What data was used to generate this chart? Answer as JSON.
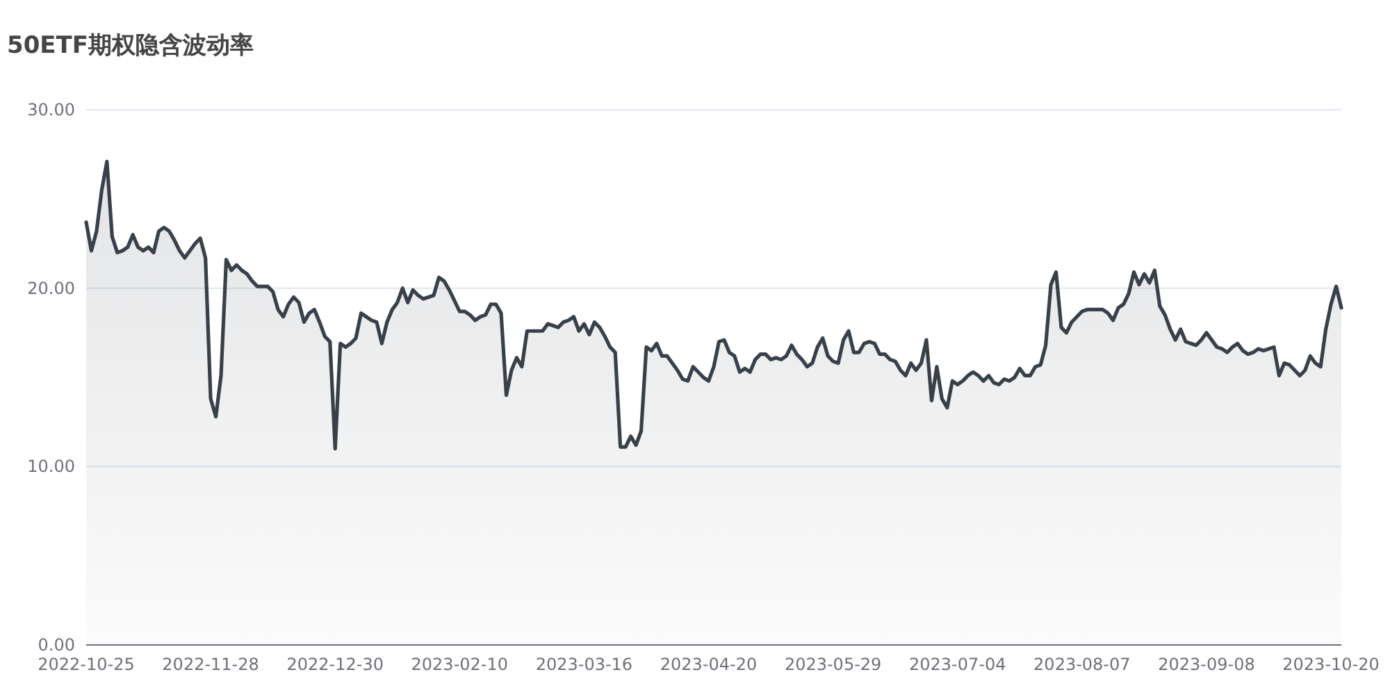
{
  "chart_data": {
    "type": "area",
    "title": "50ETF期权隐含波动率",
    "categories": [
      "2022-10-25",
      null,
      null,
      null,
      null,
      null,
      null,
      null,
      null,
      null,
      null,
      null,
      null,
      null,
      null,
      null,
      null,
      null,
      null,
      null,
      null,
      null,
      null,
      null,
      "2022-11-28",
      null,
      null,
      null,
      null,
      null,
      null,
      null,
      null,
      null,
      null,
      null,
      null,
      null,
      null,
      null,
      null,
      null,
      null,
      null,
      null,
      null,
      null,
      null,
      "2022-12-30",
      null,
      null,
      null,
      null,
      null,
      null,
      null,
      null,
      null,
      null,
      null,
      null,
      null,
      null,
      null,
      null,
      null,
      null,
      null,
      null,
      null,
      null,
      null,
      "2023-02-10",
      null,
      null,
      null,
      null,
      null,
      null,
      null,
      null,
      null,
      null,
      null,
      null,
      null,
      null,
      null,
      null,
      null,
      null,
      null,
      null,
      null,
      null,
      null,
      "2023-03-16",
      null,
      null,
      null,
      null,
      null,
      null,
      null,
      null,
      null,
      null,
      null,
      null,
      null,
      null,
      null,
      null,
      null,
      null,
      null,
      null,
      null,
      null,
      null,
      "2023-04-20",
      null,
      null,
      null,
      null,
      null,
      null,
      null,
      null,
      null,
      null,
      null,
      null,
      null,
      null,
      null,
      null,
      null,
      null,
      null,
      null,
      null,
      null,
      null,
      "2023-05-29",
      null,
      null,
      null,
      null,
      null,
      null,
      null,
      null,
      null,
      null,
      null,
      null,
      null,
      null,
      null,
      null,
      null,
      null,
      null,
      null,
      null,
      null,
      null,
      "2023-07-04",
      null,
      null,
      null,
      null,
      null,
      null,
      null,
      null,
      null,
      null,
      null,
      null,
      null,
      null,
      null,
      null,
      null,
      null,
      null,
      null,
      null,
      null,
      null,
      "2023-08-07",
      null,
      null,
      null,
      null,
      null,
      null,
      null,
      null,
      null,
      null,
      null,
      null,
      null,
      null,
      null,
      null,
      null,
      null,
      null,
      null,
      null,
      null,
      null,
      "2023-09-08",
      null,
      null,
      null,
      null,
      null,
      null,
      null,
      null,
      null,
      null,
      null,
      null,
      null,
      null,
      null,
      null,
      null,
      null,
      null,
      null,
      null,
      null,
      null,
      "2023-10-20",
      null,
      null
    ],
    "values": [
      23.7,
      22.1,
      23.2,
      25.5,
      27.1,
      22.9,
      22.0,
      22.1,
      22.3,
      23.0,
      22.3,
      22.1,
      22.3,
      22.0,
      23.2,
      23.4,
      23.2,
      22.7,
      22.1,
      21.7,
      22.1,
      22.5,
      22.8,
      21.7,
      13.8,
      12.8,
      15.1,
      21.6,
      21.0,
      21.3,
      21.0,
      20.8,
      20.4,
      20.1,
      20.1,
      20.1,
      19.8,
      18.8,
      18.4,
      19.1,
      19.5,
      19.2,
      18.1,
      18.6,
      18.8,
      18.1,
      17.3,
      17.0,
      11.0,
      16.9,
      16.7,
      16.9,
      17.2,
      18.6,
      18.4,
      18.2,
      18.1,
      16.9,
      18.1,
      18.8,
      19.2,
      20.0,
      19.2,
      19.9,
      19.6,
      19.4,
      19.5,
      19.6,
      20.6,
      20.4,
      19.9,
      19.3,
      18.7,
      18.7,
      18.5,
      18.2,
      18.4,
      18.5,
      19.1,
      19.1,
      18.6,
      14.0,
      15.4,
      16.1,
      15.6,
      17.6,
      17.6,
      17.6,
      17.6,
      18.0,
      17.9,
      17.8,
      18.1,
      18.2,
      18.4,
      17.6,
      18.0,
      17.4,
      18.1,
      17.8,
      17.3,
      16.7,
      16.4,
      11.1,
      11.1,
      11.7,
      11.2,
      12.0,
      16.7,
      16.5,
      16.9,
      16.2,
      16.2,
      15.8,
      15.4,
      14.9,
      14.8,
      15.6,
      15.3,
      15.0,
      14.8,
      15.6,
      17.0,
      17.1,
      16.4,
      16.2,
      15.3,
      15.5,
      15.3,
      16.0,
      16.3,
      16.3,
      16.0,
      16.1,
      16.0,
      16.2,
      16.8,
      16.3,
      16.0,
      15.6,
      15.8,
      16.7,
      17.2,
      16.2,
      15.9,
      15.8,
      17.1,
      17.6,
      16.4,
      16.4,
      16.9,
      17.0,
      16.9,
      16.3,
      16.3,
      16.0,
      15.9,
      15.4,
      15.1,
      15.8,
      15.4,
      15.8,
      17.1,
      13.7,
      15.6,
      13.8,
      13.3,
      14.8,
      14.6,
      14.8,
      15.1,
      15.3,
      15.1,
      14.8,
      15.1,
      14.7,
      14.6,
      14.9,
      14.8,
      15.0,
      15.5,
      15.1,
      15.1,
      15.6,
      15.7,
      16.8,
      20.2,
      20.9,
      17.8,
      17.5,
      18.1,
      18.4,
      18.7,
      18.8,
      18.8,
      18.8,
      18.8,
      18.6,
      18.2,
      18.9,
      19.1,
      19.7,
      20.9,
      20.2,
      20.8,
      20.3,
      21.0,
      19.0,
      18.5,
      17.7,
      17.1,
      17.7,
      17.0,
      16.9,
      16.8,
      17.1,
      17.5,
      17.1,
      16.7,
      16.6,
      16.4,
      16.7,
      16.9,
      16.5,
      16.3,
      16.4,
      16.6,
      16.5,
      16.6,
      16.7,
      15.1,
      15.8,
      15.7,
      15.4,
      15.1,
      15.4,
      16.2,
      15.8,
      15.6,
      17.7,
      19.1,
      20.1,
      18.9
    ],
    "color": "#38404a",
    "ylim": [
      0,
      30
    ],
    "yticks": [
      {
        "value": 0,
        "label": "0.00"
      },
      {
        "value": 10,
        "label": "10.00"
      },
      {
        "value": 20,
        "label": "20.00"
      },
      {
        "value": 30,
        "label": "30.00"
      }
    ],
    "grid": "y"
  }
}
